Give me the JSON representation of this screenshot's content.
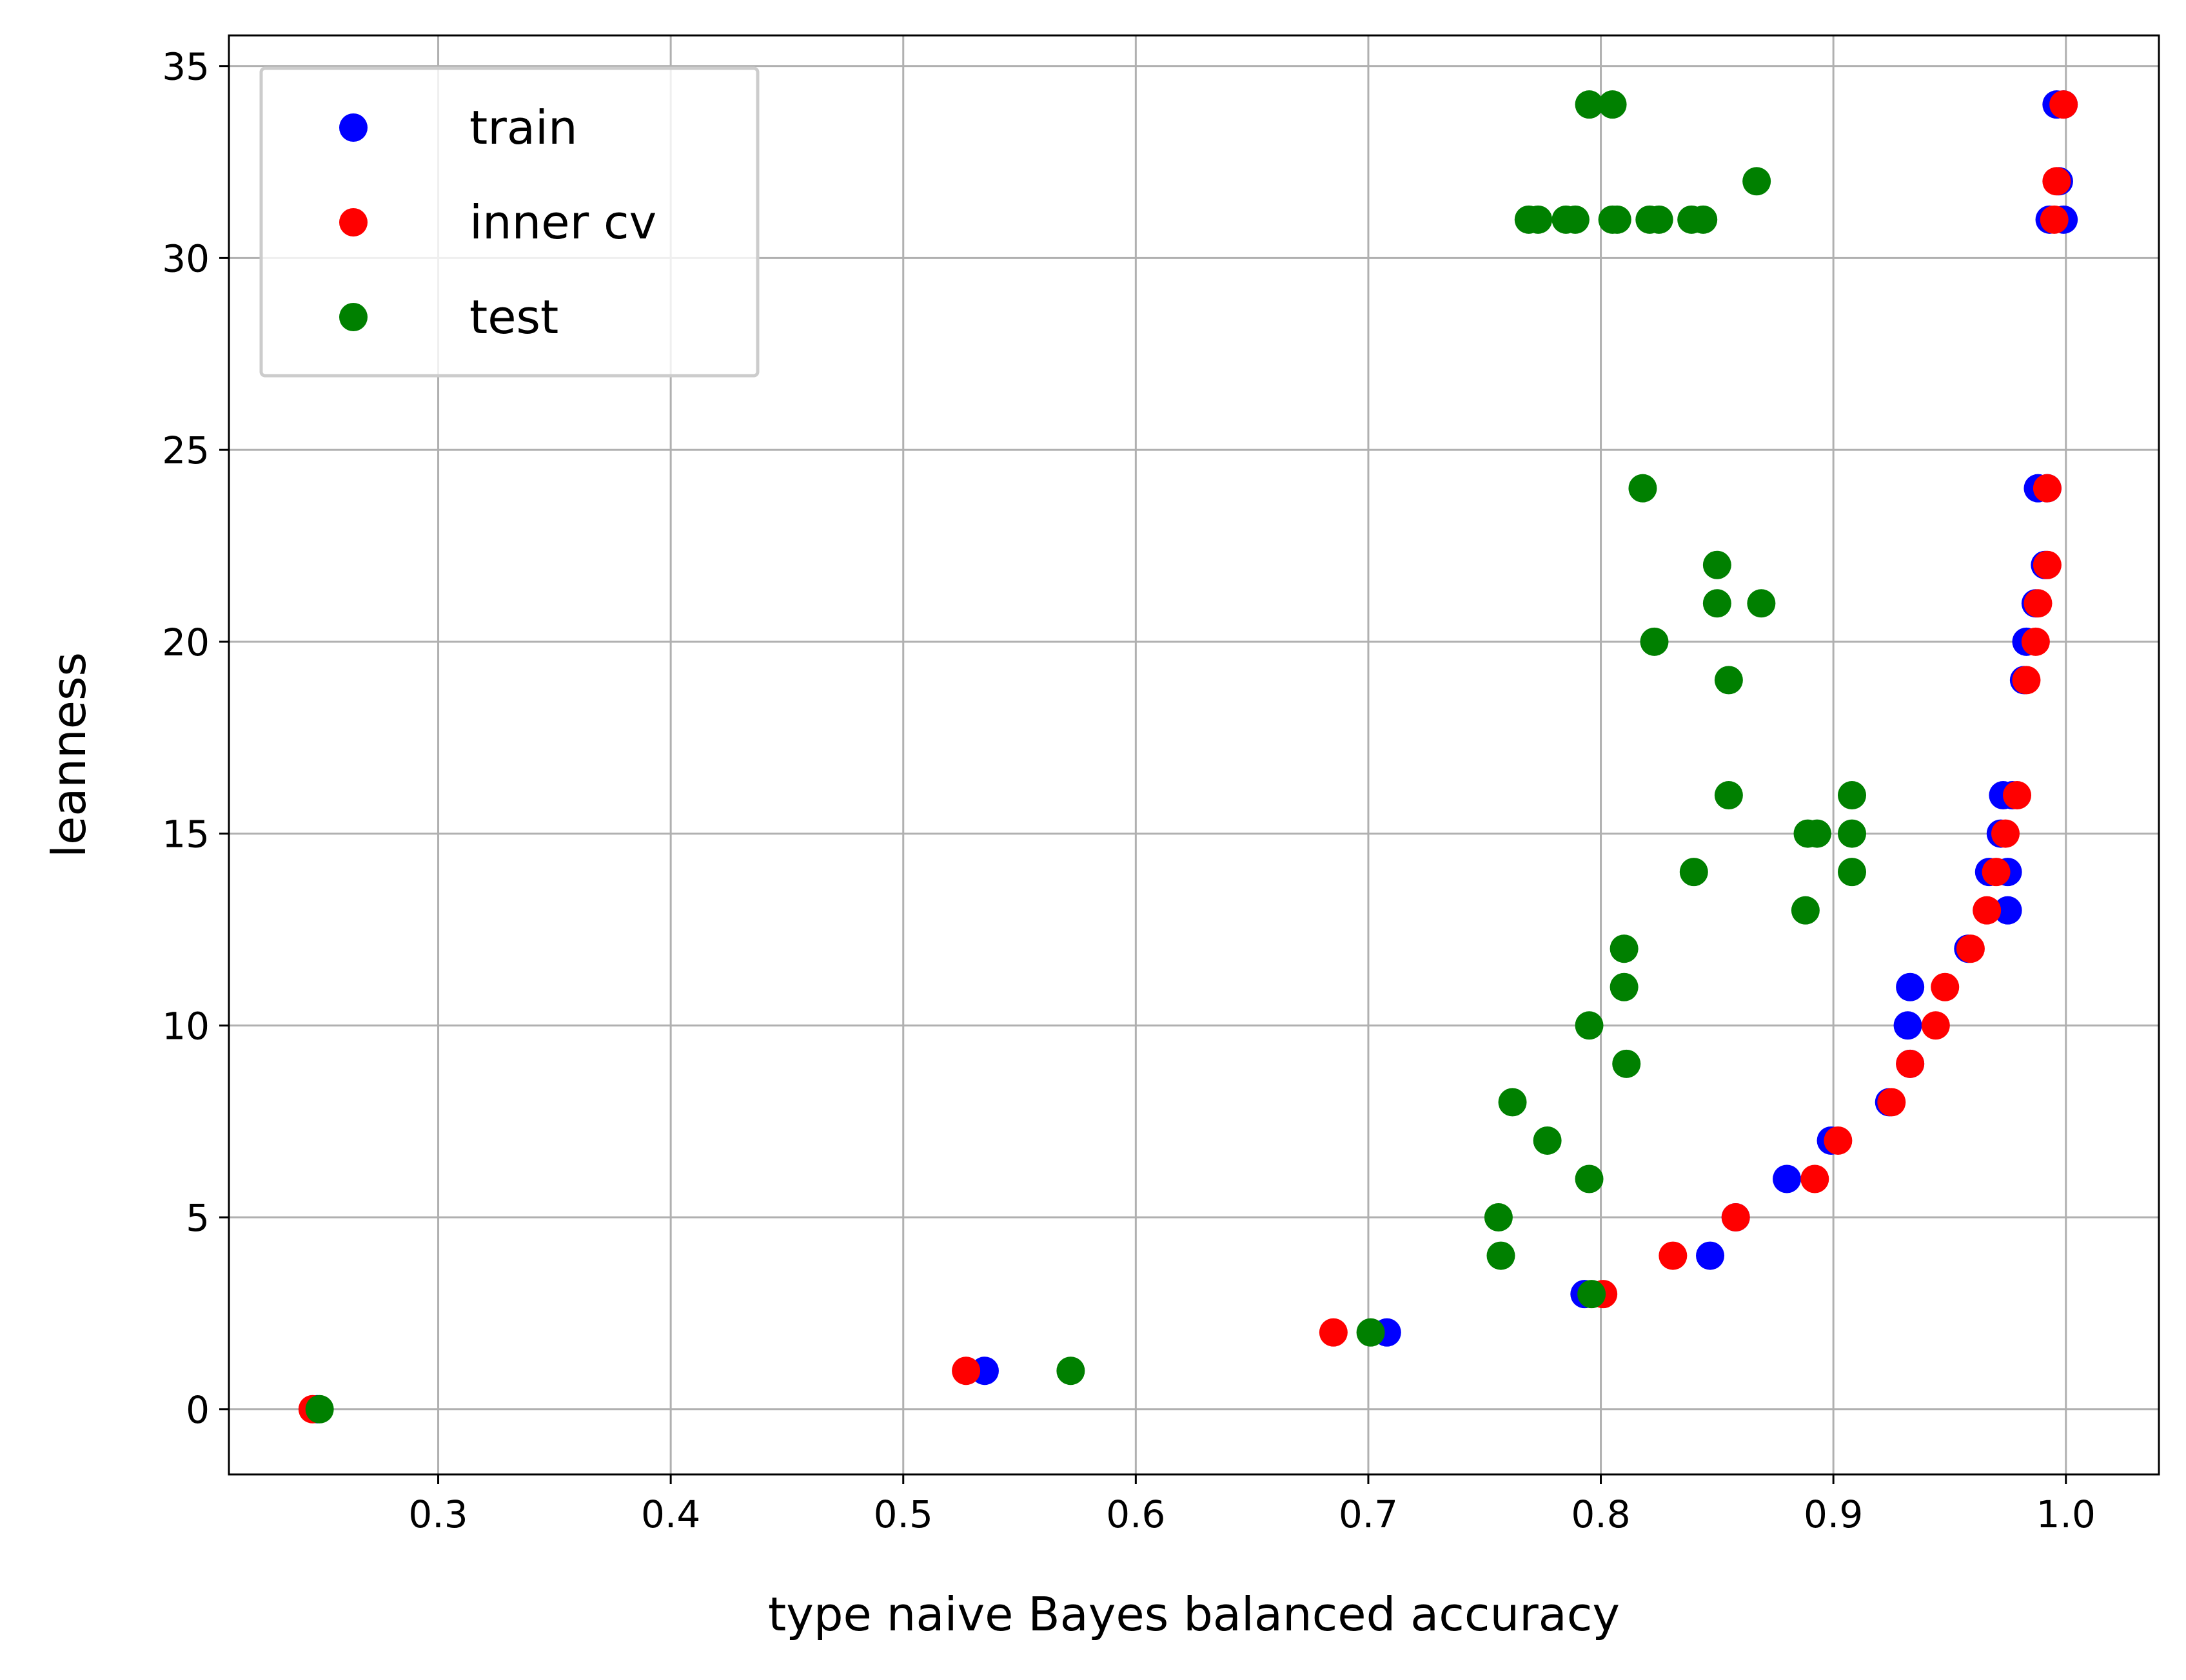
{
  "chart_data": {
    "type": "scatter",
    "xlabel": "type naive Bayes balanced accuracy",
    "ylabel": "leanness",
    "xlim": [
      0.21,
      1.04
    ],
    "ylim": [
      -1.7,
      35.8
    ],
    "xticks": [
      0.3,
      0.4,
      0.5,
      0.6,
      0.7,
      0.8,
      0.9,
      1.0
    ],
    "xtick_labels": [
      "0.3",
      "0.4",
      "0.5",
      "0.6",
      "0.7",
      "0.8",
      "0.9",
      "1.0"
    ],
    "yticks": [
      0,
      5,
      10,
      15,
      20,
      25,
      30,
      35
    ],
    "ytick_labels": [
      "0",
      "5",
      "10",
      "15",
      "20",
      "25",
      "30",
      "35"
    ],
    "grid": true,
    "legend_position": "top-left",
    "series": [
      {
        "name": "train",
        "color": "#0000ff",
        "points": [
          [
            0.248,
            0
          ],
          [
            0.535,
            1
          ],
          [
            0.708,
            2
          ],
          [
            0.793,
            3
          ],
          [
            0.847,
            4
          ],
          [
            0.858,
            5
          ],
          [
            0.88,
            6
          ],
          [
            0.899,
            7
          ],
          [
            0.924,
            8
          ],
          [
            0.933,
            9
          ],
          [
            0.932,
            10
          ],
          [
            0.933,
            11
          ],
          [
            0.958,
            12
          ],
          [
            0.975,
            13
          ],
          [
            0.967,
            14
          ],
          [
            0.975,
            14
          ],
          [
            0.972,
            15
          ],
          [
            0.973,
            16
          ],
          [
            0.977,
            16
          ],
          [
            0.982,
            19
          ],
          [
            0.983,
            20
          ],
          [
            0.987,
            21
          ],
          [
            0.991,
            22
          ],
          [
            0.988,
            24
          ],
          [
            0.992,
            24
          ],
          [
            0.993,
            31
          ],
          [
            0.999,
            31
          ],
          [
            0.997,
            32
          ],
          [
            0.996,
            34
          ],
          [
            0.999,
            34
          ]
        ]
      },
      {
        "name": "inner cv",
        "color": "#ff0000",
        "points": [
          [
            0.246,
            0
          ],
          [
            0.527,
            1
          ],
          [
            0.685,
            2
          ],
          [
            0.801,
            3
          ],
          [
            0.831,
            4
          ],
          [
            0.858,
            5
          ],
          [
            0.892,
            6
          ],
          [
            0.902,
            7
          ],
          [
            0.925,
            8
          ],
          [
            0.933,
            9
          ],
          [
            0.944,
            10
          ],
          [
            0.948,
            11
          ],
          [
            0.959,
            12
          ],
          [
            0.966,
            13
          ],
          [
            0.97,
            14
          ],
          [
            0.974,
            15
          ],
          [
            0.979,
            16
          ],
          [
            0.983,
            19
          ],
          [
            0.987,
            20
          ],
          [
            0.988,
            21
          ],
          [
            0.992,
            22
          ],
          [
            0.992,
            24
          ],
          [
            0.995,
            31
          ],
          [
            0.996,
            32
          ],
          [
            0.999,
            34
          ]
        ]
      },
      {
        "name": "test",
        "color": "#008000",
        "points": [
          [
            0.249,
            0
          ],
          [
            0.572,
            1
          ],
          [
            0.701,
            2
          ],
          [
            0.796,
            3
          ],
          [
            0.757,
            4
          ],
          [
            0.756,
            5
          ],
          [
            0.795,
            6
          ],
          [
            0.777,
            7
          ],
          [
            0.762,
            8
          ],
          [
            0.811,
            9
          ],
          [
            0.795,
            10
          ],
          [
            0.81,
            11
          ],
          [
            0.81,
            12
          ],
          [
            0.888,
            13
          ],
          [
            0.84,
            14
          ],
          [
            0.908,
            14
          ],
          [
            0.889,
            15
          ],
          [
            0.893,
            15
          ],
          [
            0.908,
            15
          ],
          [
            0.855,
            16
          ],
          [
            0.908,
            16
          ],
          [
            0.855,
            19
          ],
          [
            0.823,
            20
          ],
          [
            0.85,
            21
          ],
          [
            0.869,
            21
          ],
          [
            0.85,
            22
          ],
          [
            0.818,
            24
          ],
          [
            0.769,
            31
          ],
          [
            0.773,
            31
          ],
          [
            0.785,
            31
          ],
          [
            0.789,
            31
          ],
          [
            0.805,
            31
          ],
          [
            0.807,
            31
          ],
          [
            0.821,
            31
          ],
          [
            0.825,
            31
          ],
          [
            0.839,
            31
          ],
          [
            0.844,
            31
          ],
          [
            0.867,
            32
          ],
          [
            0.795,
            34
          ],
          [
            0.805,
            34
          ]
        ]
      }
    ]
  }
}
